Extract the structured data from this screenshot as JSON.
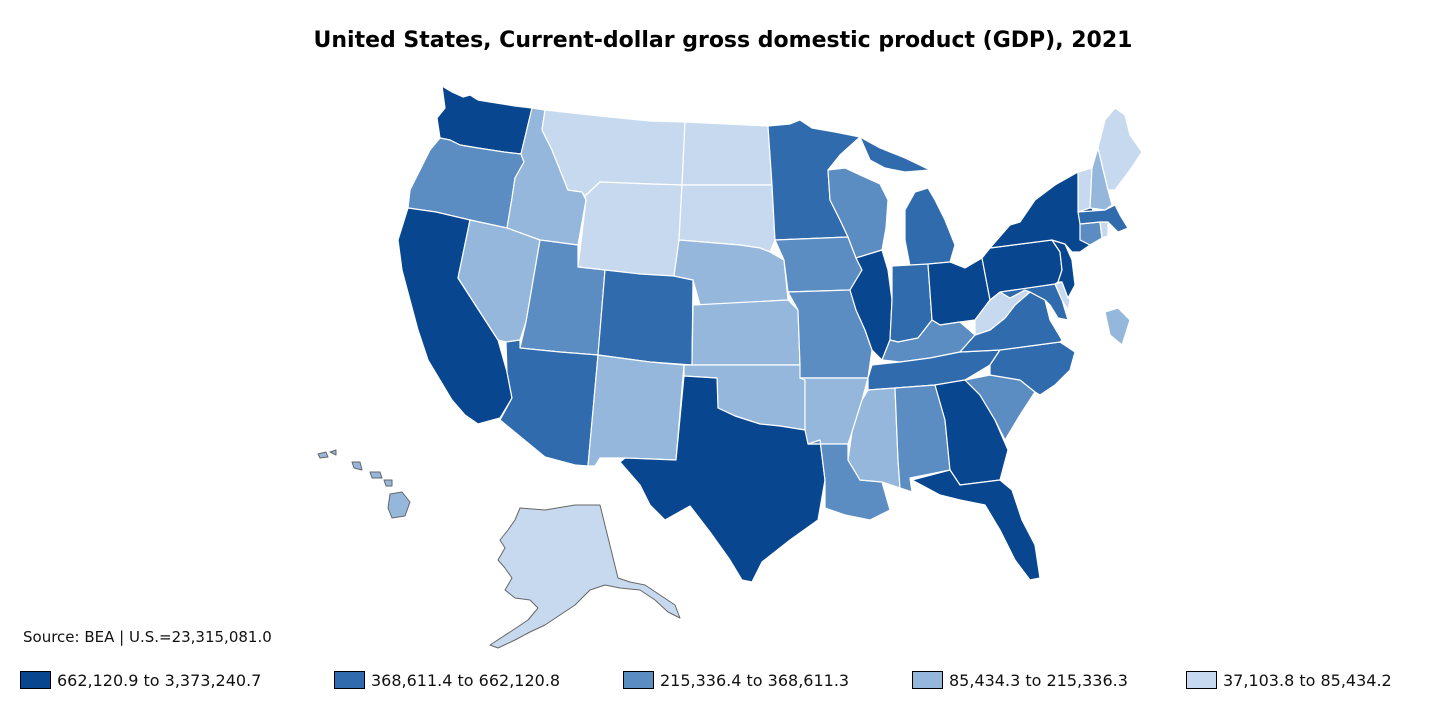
{
  "title": "United States, Current-dollar gross domestic product (GDP), 2021",
  "source": "Source: BEA | U.S.=23,315,081.0",
  "colors": {
    "c1": "#08468f",
    "c2": "#2f6bad",
    "c3": "#5b8dc3",
    "c4": "#94b7db",
    "c5": "#c7d9ef"
  },
  "legend": [
    {
      "label": "662,120.9 to 3,373,240.7",
      "color": "#08468f"
    },
    {
      "label": "368,611.4 to 662,120.8",
      "color": "#2f6bad"
    },
    {
      "label": "215,336.4 to 368,611.3",
      "color": "#5b8dc3"
    },
    {
      "label": "85,434.3 to 215,336.3",
      "color": "#94b7db"
    },
    {
      "label": "37,103.8 to 85,434.2",
      "color": "#c7d9ef"
    }
  ],
  "states": [
    {
      "id": "WA",
      "class": 1
    },
    {
      "id": "OR",
      "class": 3
    },
    {
      "id": "CA",
      "class": 1
    },
    {
      "id": "ID",
      "class": 4
    },
    {
      "id": "NV",
      "class": 4
    },
    {
      "id": "MT",
      "class": 5
    },
    {
      "id": "WY",
      "class": 5
    },
    {
      "id": "UT",
      "class": 3
    },
    {
      "id": "AZ",
      "class": 2
    },
    {
      "id": "CO",
      "class": 2
    },
    {
      "id": "NM",
      "class": 4
    },
    {
      "id": "ND",
      "class": 5
    },
    {
      "id": "SD",
      "class": 5
    },
    {
      "id": "NE",
      "class": 4
    },
    {
      "id": "KS",
      "class": 4
    },
    {
      "id": "OK",
      "class": 4
    },
    {
      "id": "TX",
      "class": 1
    },
    {
      "id": "MN",
      "class": 2
    },
    {
      "id": "IA",
      "class": 3
    },
    {
      "id": "MO",
      "class": 3
    },
    {
      "id": "AR",
      "class": 4
    },
    {
      "id": "LA",
      "class": 3
    },
    {
      "id": "WI",
      "class": 3
    },
    {
      "id": "IL",
      "class": 1
    },
    {
      "id": "MI",
      "class": 2
    },
    {
      "id": "IN",
      "class": 2
    },
    {
      "id": "OH",
      "class": 1
    },
    {
      "id": "KY",
      "class": 3
    },
    {
      "id": "TN",
      "class": 2
    },
    {
      "id": "MS",
      "class": 4
    },
    {
      "id": "AL",
      "class": 3
    },
    {
      "id": "GA",
      "class": 1
    },
    {
      "id": "FL",
      "class": 1
    },
    {
      "id": "SC",
      "class": 3
    },
    {
      "id": "NC",
      "class": 2
    },
    {
      "id": "VA",
      "class": 2
    },
    {
      "id": "WV",
      "class": 5
    },
    {
      "id": "MD",
      "class": 2
    },
    {
      "id": "DE",
      "class": 5
    },
    {
      "id": "PA",
      "class": 1
    },
    {
      "id": "NJ",
      "class": 1
    },
    {
      "id": "NY",
      "class": 1
    },
    {
      "id": "CT",
      "class": 3
    },
    {
      "id": "RI",
      "class": 5
    },
    {
      "id": "MA",
      "class": 2
    },
    {
      "id": "VT",
      "class": 5
    },
    {
      "id": "NH",
      "class": 4
    },
    {
      "id": "ME",
      "class": 5
    },
    {
      "id": "DC",
      "class": 4
    },
    {
      "id": "AK",
      "class": 5
    },
    {
      "id": "HI",
      "class": 4
    }
  ]
}
